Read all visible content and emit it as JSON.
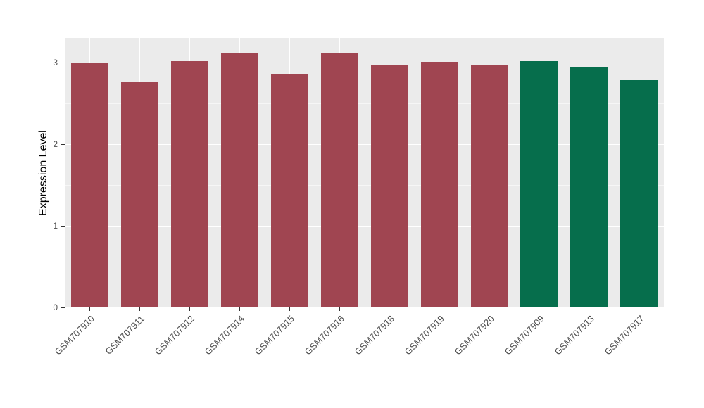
{
  "chart_data": {
    "type": "bar",
    "title": "",
    "xlabel": "",
    "ylabel": "Expression Level",
    "categories": [
      "GSM707910",
      "GSM707911",
      "GSM707912",
      "GSM707914",
      "GSM707915",
      "GSM707916",
      "GSM707918",
      "GSM707919",
      "GSM707920",
      "GSM707909",
      "GSM707913",
      "GSM707917"
    ],
    "values": [
      2.99,
      2.77,
      3.02,
      3.12,
      2.86,
      3.12,
      2.96,
      3.01,
      2.97,
      3.02,
      2.95,
      2.78
    ],
    "colors": [
      "#A04551",
      "#A04551",
      "#A04551",
      "#A04551",
      "#A04551",
      "#A04551",
      "#A04551",
      "#A04551",
      "#A04551",
      "#066E4C",
      "#066E4C",
      "#066E4C"
    ],
    "group_colors": {
      "red_group": "#A04551",
      "green_group": "#066E4C"
    },
    "ylim": [
      0,
      3.3
    ],
    "yticks": [
      0,
      1,
      2,
      3
    ],
    "yticks_minor": [
      0.5,
      1.5,
      2.5
    ],
    "grid": "on",
    "legend": "none",
    "panel_background": "#EBEBEB",
    "grid_color": "#FFFFFF",
    "bar_width_ratio": 0.74
  }
}
